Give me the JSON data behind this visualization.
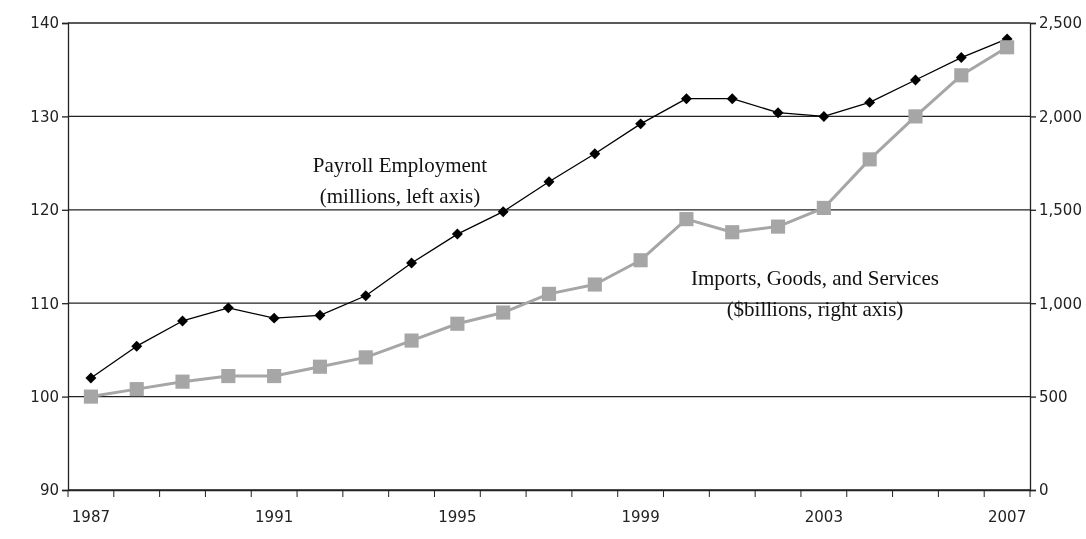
{
  "chart_data": {
    "type": "line",
    "categories": [
      "1987",
      null,
      null,
      null,
      "1991",
      null,
      null,
      null,
      "1995",
      null,
      null,
      null,
      "1999",
      null,
      null,
      null,
      "2003",
      null,
      null,
      null,
      "2007"
    ],
    "series": [
      {
        "color": "#000000",
        "marker": "diamond",
        "values": [
          102.0,
          105.4,
          108.1,
          109.5,
          108.4,
          108.7,
          110.8,
          114.3,
          117.4,
          119.8,
          123.0,
          126.0,
          129.2,
          131.9,
          131.9,
          130.4,
          130.0,
          131.5,
          133.9,
          136.3,
          138.3
        ]
      },
      {
        "color": "#a6a6a6",
        "marker": "square",
        "axis": "y2",
        "values": [
          500,
          540,
          580,
          610,
          610,
          660,
          710,
          800,
          890,
          950,
          1050,
          1100,
          1230,
          1450,
          1380,
          1410,
          1510,
          1770,
          2000,
          2220,
          2370
        ]
      }
    ],
    "ylim": [
      90,
      140
    ],
    "yticks": [
      90,
      100,
      110,
      120,
      130,
      140
    ],
    "y2lim": [
      0,
      2500
    ],
    "y2ticks": [
      0,
      {
        "value": 500,
        "label": "500"
      },
      {
        "value": 1000,
        "label": "1,000"
      },
      {
        "value": 1500,
        "label": "1,500"
      },
      {
        "value": 2000,
        "label": "2,000"
      },
      {
        "value": 2500,
        "label": "2,500"
      }
    ],
    "grid": "y",
    "annotations": [
      "Payroll Employment\n(millions, left axis)",
      "Imports, Goods, and Services\n($billions, right axis)"
    ]
  }
}
